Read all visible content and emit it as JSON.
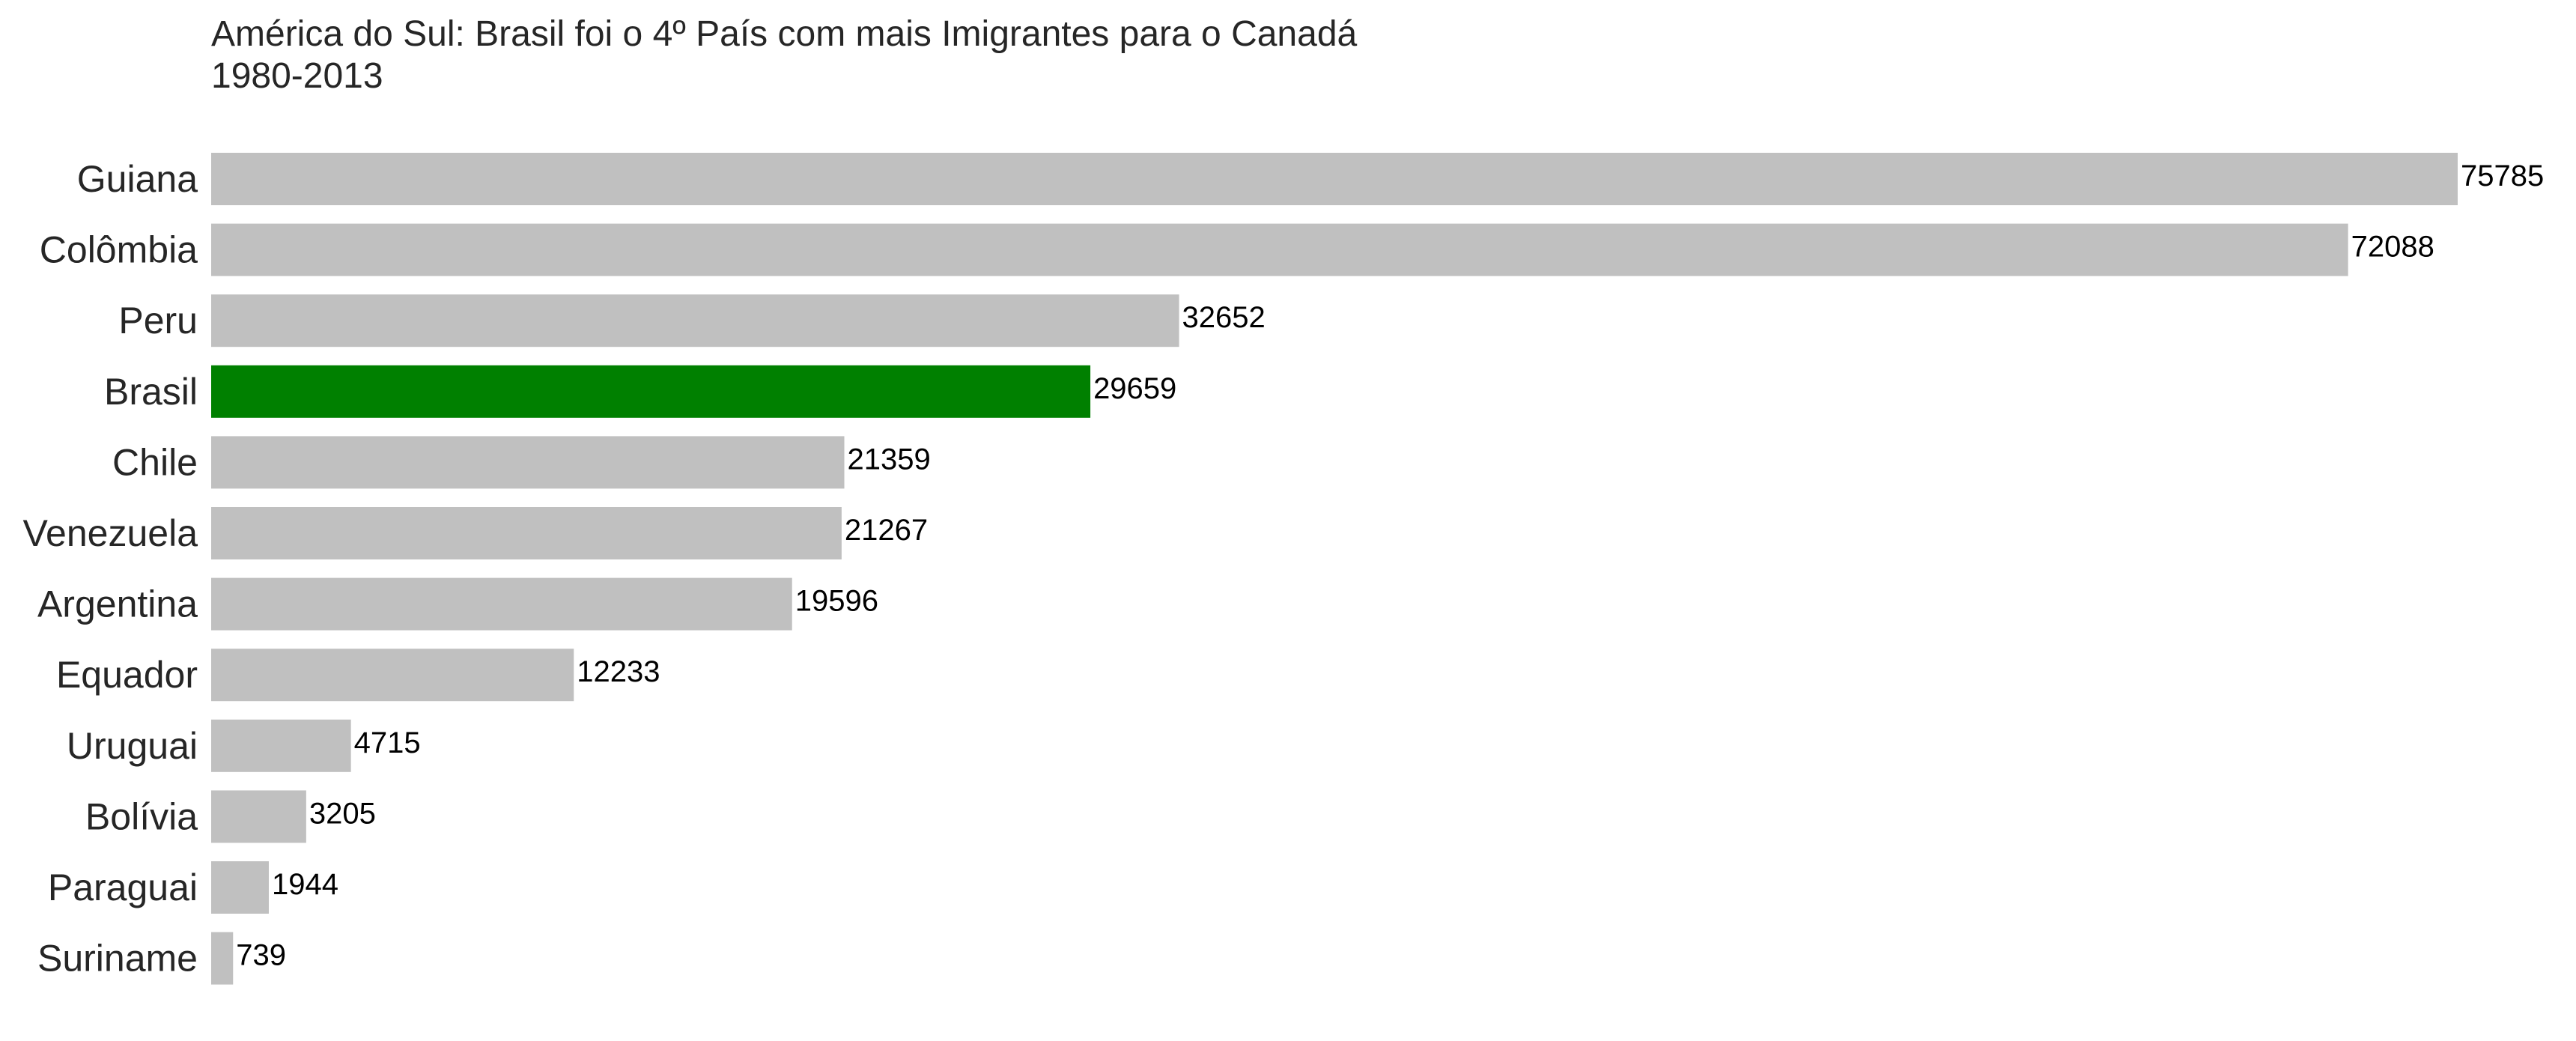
{
  "chart_data": {
    "type": "bar",
    "orientation": "horizontal",
    "title_line1": "América do Sul: Brasil foi o 4º País com mais Imigrantes para o Canadá",
    "title_line2": "1980-2013",
    "xlabel": "",
    "ylabel": "",
    "grid": false,
    "legend": "none",
    "xlim": [
      0,
      75785
    ],
    "categories": [
      "Guiana",
      "Colômbia",
      "Peru",
      "Brasil",
      "Chile",
      "Venezuela",
      "Argentina",
      "Equador",
      "Uruguai",
      "Bolívia",
      "Paraguai",
      "Suriname"
    ],
    "values": [
      75785,
      72088,
      32652,
      29659,
      21359,
      21267,
      19596,
      12233,
      4715,
      3205,
      1944,
      739
    ],
    "highlight_category": "Brasil",
    "bar_color": "#c0c0c0",
    "highlight_color": "#008000"
  }
}
